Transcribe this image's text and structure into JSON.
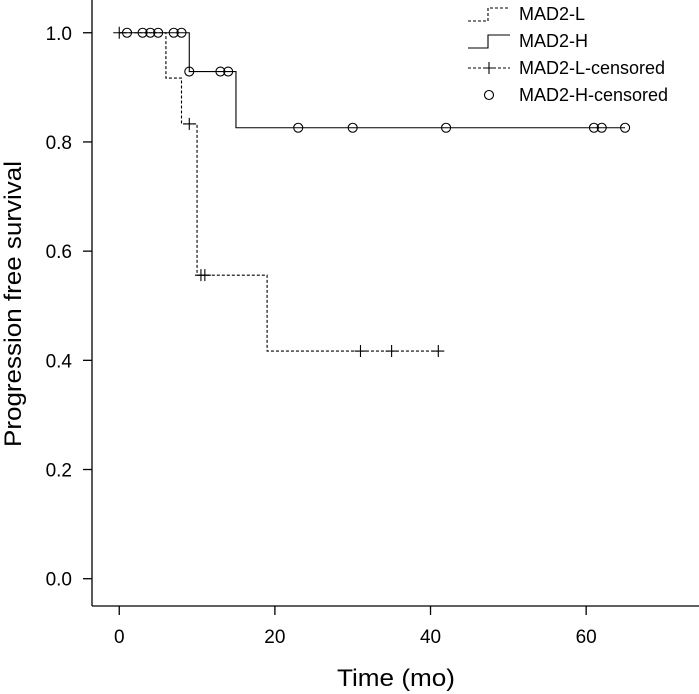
{
  "chart_data": {
    "type": "line",
    "xlabel": "Time (mo)",
    "ylabel": "Progression free survival",
    "xlim": [
      -3.5,
      74.5
    ],
    "ylim": [
      -0.05,
      1.06
    ],
    "xticks": [
      0,
      20,
      40,
      60
    ],
    "yticks": [
      0.0,
      0.2,
      0.4,
      0.6,
      0.8,
      1.0
    ],
    "xtick_labels": [
      "0",
      "20",
      "40",
      "60"
    ],
    "ytick_labels": [
      "0.0",
      "0.2",
      "0.4",
      "0.6",
      "0.8",
      "1.0"
    ],
    "grid": false,
    "legend_position": "top-right",
    "legend": [
      {
        "label": "MAD2-L",
        "style": "dashed-line"
      },
      {
        "label": "MAD2-H",
        "style": "solid-line"
      },
      {
        "label": "MAD2-L-censored",
        "style": "plus-marker"
      },
      {
        "label": "MAD2-H-censored",
        "style": "circle-marker"
      }
    ],
    "series": [
      {
        "name": "MAD2-L",
        "line_style": "dashed",
        "step_x": [
          0,
          6,
          8,
          10,
          19,
          41
        ],
        "step_y": [
          1.0,
          0.917,
          0.833,
          0.556,
          0.417,
          0.417
        ],
        "censored_x": [
          0,
          9,
          10.5,
          11,
          31,
          35,
          41
        ],
        "censored_y": [
          1.0,
          0.833,
          0.556,
          0.556,
          0.417,
          0.417,
          0.417
        ]
      },
      {
        "name": "MAD2-H",
        "line_style": "solid",
        "step_x": [
          0,
          9,
          15,
          65
        ],
        "step_y": [
          1.0,
          0.929,
          0.826,
          0.826
        ],
        "censored_x": [
          1,
          3,
          4,
          5,
          7,
          8,
          9,
          13,
          14,
          23,
          30,
          42,
          61,
          62,
          65
        ],
        "censored_y": [
          1.0,
          1.0,
          1.0,
          1.0,
          1.0,
          1.0,
          0.929,
          0.929,
          0.929,
          0.826,
          0.826,
          0.826,
          0.826,
          0.826,
          0.826
        ]
      }
    ]
  }
}
